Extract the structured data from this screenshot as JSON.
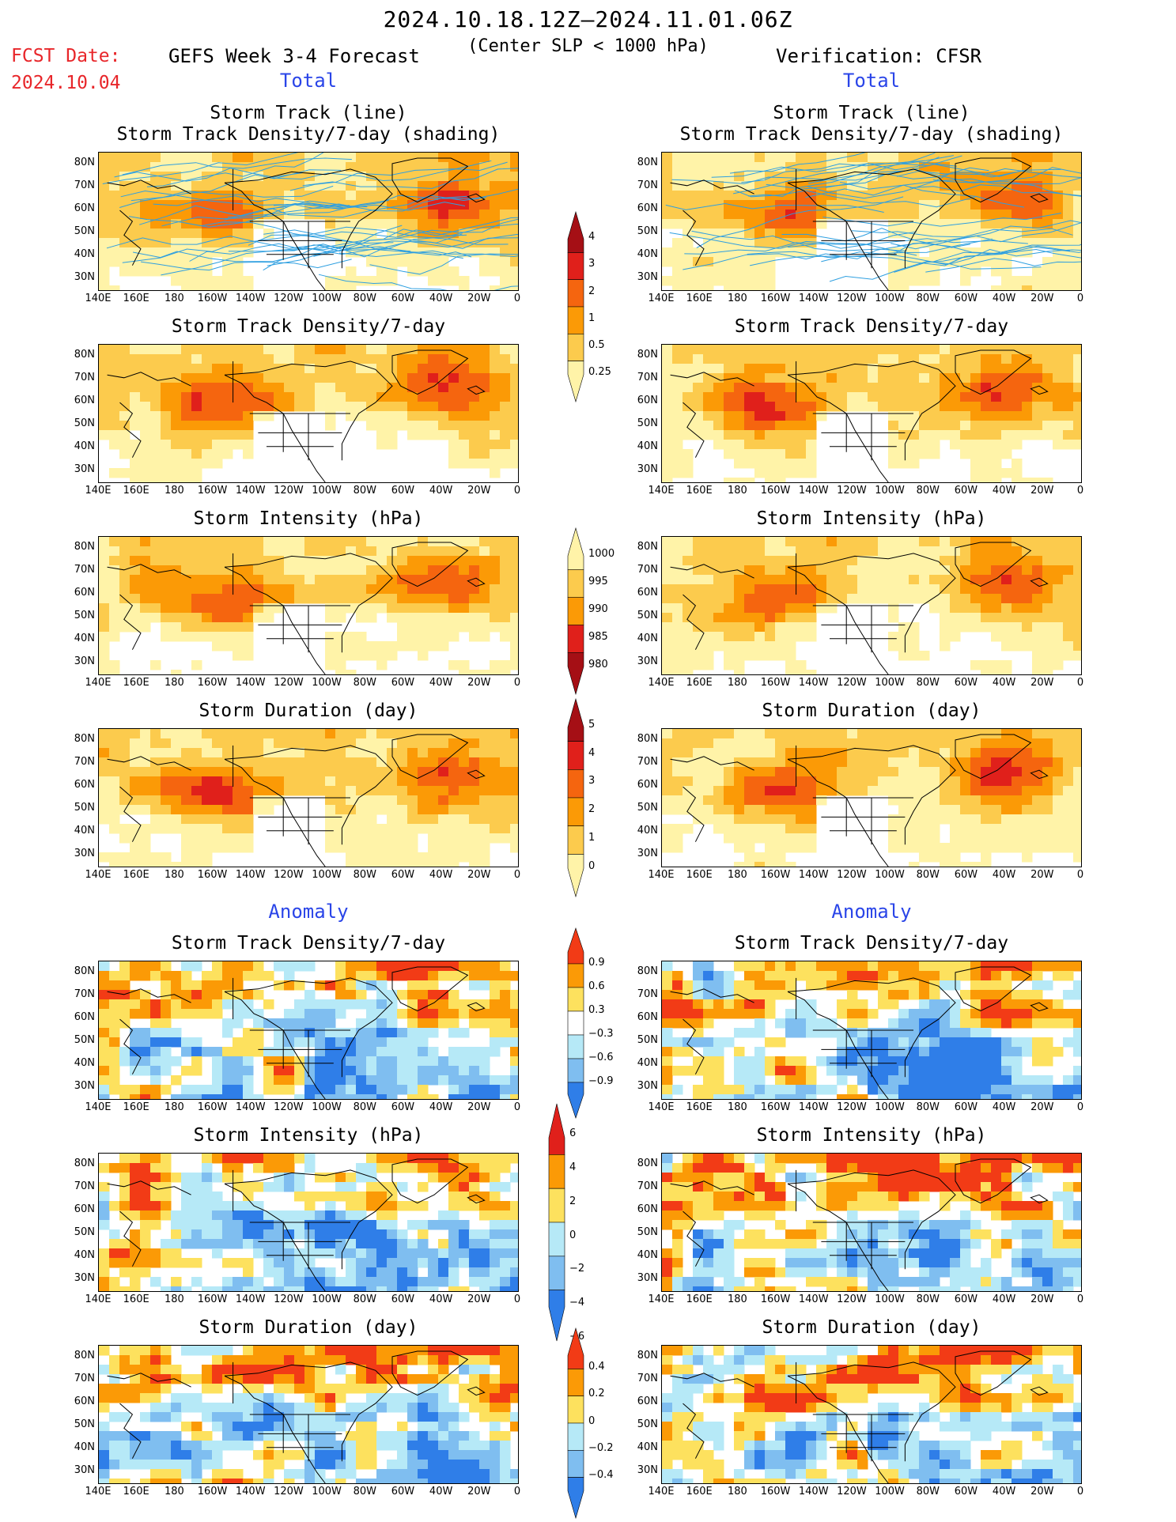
{
  "header": {
    "title": "2024.10.18.12Z–2024.11.01.06Z",
    "subtitle": "(Center SLP < 1000 hPa)",
    "fcst_label": "FCST Date:",
    "fcst_date": "2024.10.04",
    "left_heading": "GEFS Week 3-4 Forecast",
    "right_heading": "Verification: CFSR"
  },
  "sections": {
    "total": "Total",
    "anomaly": "Anomaly"
  },
  "axes": {
    "lat": [
      "80N",
      "70N",
      "60N",
      "50N",
      "40N",
      "30N"
    ],
    "lon": [
      "140E",
      "160E",
      "180",
      "160W",
      "140W",
      "120W",
      "100W",
      "80W",
      "60W",
      "40W",
      "20W",
      "0"
    ]
  },
  "panels": {
    "r1_left": [
      "Storm Track (line)",
      "Storm Track Density/7-day (shading)"
    ],
    "r1_right": [
      "Storm Track (line)",
      "Storm Track Density/7-day (shading)"
    ],
    "r2": "Storm Track Density/7-day",
    "r3": "Storm Intensity (hPa)",
    "r4": "Storm Duration (day)",
    "a1": "Storm Track Density/7-day",
    "a2": "Storm Intensity (hPa)",
    "a3": "Storm Duration (day)"
  },
  "colorbars": {
    "density": {
      "labels": [
        "4",
        "3",
        "2",
        "1",
        "0.5",
        "0.25"
      ],
      "colors": [
        "#a50f15",
        "#e0201b",
        "#f5650f",
        "#fb9a06",
        "#fccb4d",
        "#fff3a8"
      ]
    },
    "intensity": {
      "labels": [
        "1000",
        "995",
        "990",
        "985",
        "980"
      ],
      "colors": [
        "#fff3a8",
        "#fccb4d",
        "#fb9a06",
        "#e0201b",
        "#a50f15"
      ]
    },
    "duration": {
      "labels": [
        "5",
        "4",
        "3",
        "2",
        "1",
        "0"
      ],
      "colors": [
        "#a50f15",
        "#e0201b",
        "#f5650f",
        "#fb9a06",
        "#fccb4d",
        "#fff3a8"
      ]
    },
    "density_anom": {
      "labels": [
        "0.9",
        "0.6",
        "0.3",
        "−0.3",
        "−0.6",
        "−0.9"
      ],
      "colors": [
        "#f23b16",
        "#fb9a06",
        "#fde15e",
        "#ffffff",
        "#b6e9f7",
        "#7fbef0",
        "#2f7ee8"
      ]
    },
    "intensity_anom": {
      "labels": [
        "6",
        "4",
        "2",
        "0",
        "−2",
        "−4",
        "−6"
      ],
      "colors": [
        "#e0201b",
        "#fb9a06",
        "#fde15e",
        "#b6e9f7",
        "#7fbef0",
        "#2f7ee8"
      ]
    },
    "duration_anom": {
      "labels": [
        "0.4",
        "0.2",
        "0",
        "−0.2",
        "−0.4"
      ],
      "colors": [
        "#f23b16",
        "#fb9a06",
        "#fde15e",
        "#b6e9f7",
        "#7fbef0",
        "#2f7ee8"
      ]
    }
  }
}
